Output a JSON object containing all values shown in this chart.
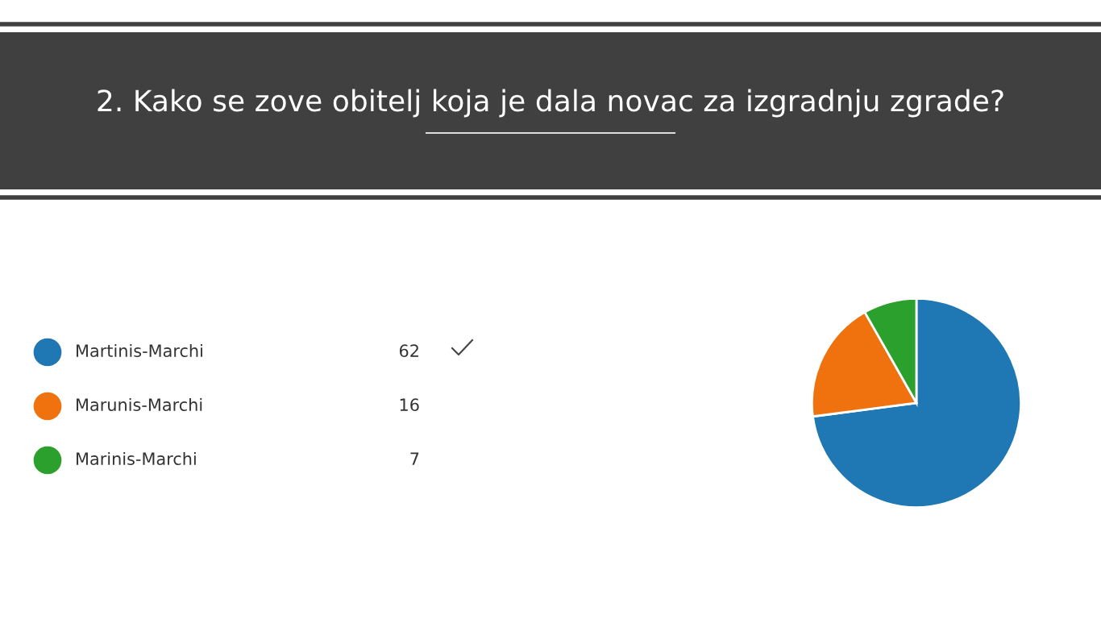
{
  "chart_data": {
    "type": "pie",
    "title": "2. Kako se zove obitelj koja je dala novac za izgradnju zgrade?",
    "categories": [
      "Martinis-Marchi",
      "Marunis-Marchi",
      "Marinis-Marchi"
    ],
    "values": [
      62,
      16,
      7
    ],
    "colors": [
      "#1f77b4",
      "#ef720e",
      "#2ca02c"
    ],
    "data_labels": true,
    "legend": "left"
  }
}
